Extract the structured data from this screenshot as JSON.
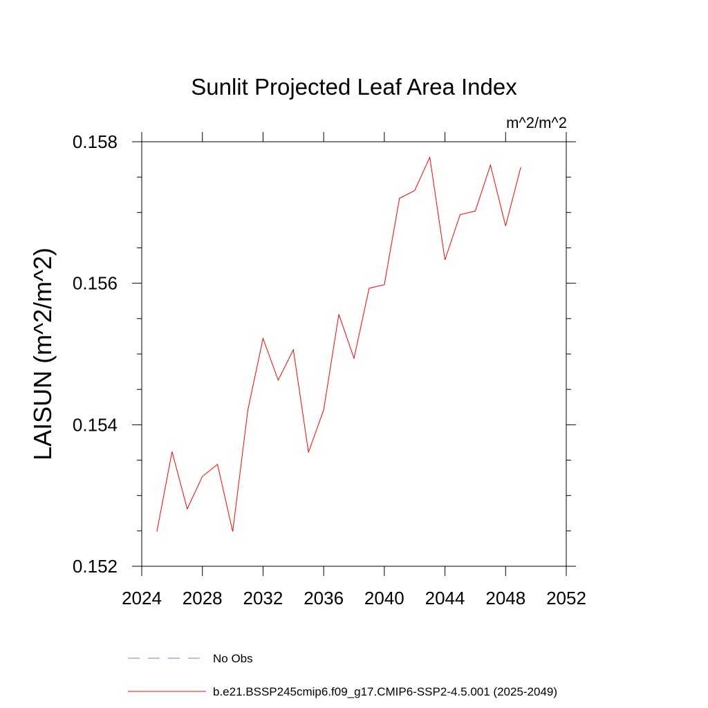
{
  "chart_data": {
    "type": "line",
    "title": "Sunlit Projected Leaf Area Index",
    "units_label": "m^2/m^2",
    "ylabel": "LAISUN  (m^2/m^2)",
    "xlabel": "",
    "xlim": [
      2024,
      2052
    ],
    "ylim": [
      0.152,
      0.158
    ],
    "x_ticks": [
      2024,
      2028,
      2032,
      2036,
      2040,
      2044,
      2048,
      2052
    ],
    "x_tick_labels": [
      "2024",
      "2028",
      "2032",
      "2036",
      "2040",
      "2044",
      "2048",
      "2052"
    ],
    "y_ticks": [
      0.152,
      0.154,
      0.156,
      0.158
    ],
    "y_tick_labels": [
      "0.152",
      "0.154",
      "0.156",
      "0.158"
    ],
    "grid": false,
    "legend_position": "bottom",
    "series": [
      {
        "name": "b.e21.BSSP245cmip6.f09_g17.CMIP6-SSP2-4.5.001 (2025-2049)",
        "color": "#ff0000",
        "style": "solid",
        "x": [
          2025,
          2026,
          2027,
          2028,
          2029,
          2030,
          2031,
          2032,
          2033,
          2034,
          2035,
          2036,
          2037,
          2038,
          2039,
          2040,
          2041,
          2042,
          2043,
          2044,
          2045,
          2046,
          2047,
          2048,
          2049
        ],
        "y": [
          0.15249,
          0.15362,
          0.15281,
          0.15327,
          0.15344,
          0.15249,
          0.15421,
          0.15522,
          0.15463,
          0.15506,
          0.15361,
          0.15421,
          0.15556,
          0.15494,
          0.15593,
          0.15598,
          0.1572,
          0.15731,
          0.15778,
          0.15633,
          0.15697,
          0.15702,
          0.15767,
          0.15681,
          0.15764
        ]
      }
    ],
    "legend": [
      {
        "label": "No Obs",
        "color": "#7b7bd6",
        "style": "dashed"
      },
      {
        "label": "b.e21.BSSP245cmip6.f09_g17.CMIP6-SSP2-4.5.001 (2025-2049)",
        "color": "#ff0000",
        "style": "solid"
      }
    ]
  }
}
